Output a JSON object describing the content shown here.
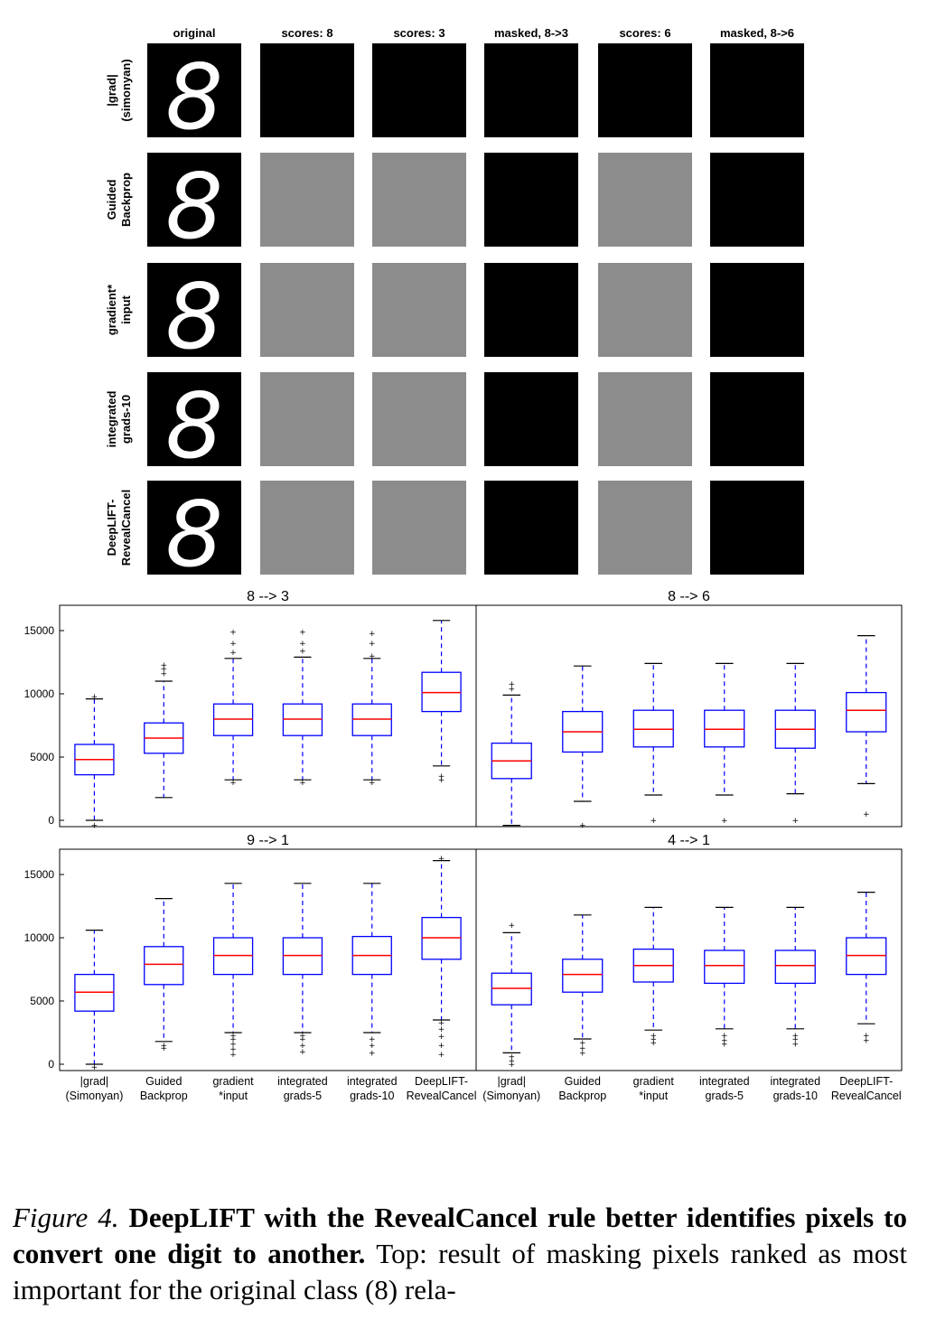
{
  "figure_grid": {
    "columns": [
      "original",
      "scores: 8",
      "scores: 3",
      "masked, 8->3",
      "scores: 6",
      "masked, 8->6"
    ],
    "rows": [
      {
        "label_lines": [
          "|grad|",
          "(simonyan)"
        ],
        "label": "|grad| (simonyan)"
      },
      {
        "label_lines": [
          "Guided",
          "Backprop"
        ],
        "label": "Guided Backprop"
      },
      {
        "label_lines": [
          "gradient*",
          "input"
        ],
        "label": "gradient* input"
      },
      {
        "label_lines": [
          "integrated",
          "grads-10"
        ],
        "label": "integrated grads-10"
      },
      {
        "label_lines": [
          "DeepLIFT-",
          "RevealCancel"
        ],
        "label": "DeepLIFT- RevealCancel"
      }
    ],
    "digit_glyph": "8",
    "colors": {
      "panel_dark": "#000000",
      "panel_gray": "#8c8c8c",
      "stroke": "#ffffff"
    }
  },
  "chart_data": [
    {
      "type": "box",
      "title": "8 --> 3",
      "ylim": [
        -500,
        17000
      ],
      "yticks": [
        0,
        5000,
        10000,
        15000
      ],
      "categories": [
        "|grad| (Simonyan)",
        "Guided Backprop",
        "gradient *input",
        "integrated grads-5",
        "integrated grads-10",
        "DeepLIFT- RevealCancel"
      ],
      "boxes": [
        {
          "whislo": 0,
          "q1": 3600,
          "med": 4800,
          "q3": 6000,
          "whishi": 9600,
          "fliers": [
            -400,
            9800
          ]
        },
        {
          "whislo": 1800,
          "q1": 5300,
          "med": 6500,
          "q3": 7700,
          "whishi": 11000,
          "fliers": [
            11600,
            12000,
            12300
          ]
        },
        {
          "whislo": 3200,
          "q1": 6700,
          "med": 8000,
          "q3": 9200,
          "whishi": 12800,
          "fliers": [
            3000,
            13300,
            14000,
            14900
          ]
        },
        {
          "whislo": 3200,
          "q1": 6700,
          "med": 8000,
          "q3": 9200,
          "whishi": 12900,
          "fliers": [
            3000,
            13400,
            14000,
            14900
          ]
        },
        {
          "whislo": 3200,
          "q1": 6700,
          "med": 8000,
          "q3": 9200,
          "whishi": 12800,
          "fliers": [
            3000,
            13000,
            14000,
            14800
          ]
        },
        {
          "whislo": 4300,
          "q1": 8600,
          "med": 10100,
          "q3": 11700,
          "whishi": 15800,
          "fliers": [
            3200,
            3500
          ]
        }
      ],
      "colors": {
        "box": "#0000ff",
        "median": "#ff0000",
        "whisker": "#0000ff",
        "cap": "#000000"
      }
    },
    {
      "type": "box",
      "title": "8 --> 6",
      "ylim": [
        -500,
        17000
      ],
      "yticks": [
        0,
        5000,
        10000,
        15000
      ],
      "categories": [
        "|grad| (Simonyan)",
        "Guided Backprop",
        "gradient *input",
        "integrated grads-5",
        "integrated grads-10",
        "DeepLIFT- RevealCancel"
      ],
      "boxes": [
        {
          "whislo": -400,
          "q1": 3300,
          "med": 4700,
          "q3": 6100,
          "whishi": 9900,
          "fliers": [
            10400,
            10800
          ]
        },
        {
          "whislo": 1500,
          "q1": 5400,
          "med": 7000,
          "q3": 8600,
          "whishi": 12200,
          "fliers": [
            -400
          ]
        },
        {
          "whislo": 2000,
          "q1": 5800,
          "med": 7200,
          "q3": 8700,
          "whishi": 12400,
          "fliers": [
            0
          ]
        },
        {
          "whislo": 2000,
          "q1": 5800,
          "med": 7200,
          "q3": 8700,
          "whishi": 12400,
          "fliers": [
            0
          ]
        },
        {
          "whislo": 2100,
          "q1": 5700,
          "med": 7200,
          "q3": 8700,
          "whishi": 12400,
          "fliers": [
            0
          ]
        },
        {
          "whislo": 2900,
          "q1": 7000,
          "med": 8700,
          "q3": 10100,
          "whishi": 14600,
          "fliers": [
            500
          ]
        }
      ],
      "colors": {
        "box": "#0000ff",
        "median": "#ff0000",
        "whisker": "#0000ff",
        "cap": "#000000"
      }
    },
    {
      "type": "box",
      "title": "9 --> 1",
      "ylim": [
        -500,
        17000
      ],
      "yticks": [
        0,
        5000,
        10000,
        15000
      ],
      "categories": [
        "|grad| (Simonyan)",
        "Guided Backprop",
        "gradient *input",
        "integrated grads-5",
        "integrated grads-10",
        "DeepLIFT- RevealCancel"
      ],
      "boxes": [
        {
          "whislo": 0,
          "q1": 4200,
          "med": 5700,
          "q3": 7100,
          "whishi": 10600,
          "fliers": [
            -200
          ]
        },
        {
          "whislo": 1800,
          "q1": 6300,
          "med": 7900,
          "q3": 9300,
          "whishi": 13100,
          "fliers": [
            1300,
            1500
          ]
        },
        {
          "whislo": 2500,
          "q1": 7100,
          "med": 8600,
          "q3": 10000,
          "whishi": 14300,
          "fliers": [
            800,
            1200,
            1600,
            2000,
            2300
          ]
        },
        {
          "whislo": 2500,
          "q1": 7100,
          "med": 8600,
          "q3": 10000,
          "whishi": 14300,
          "fliers": [
            1000,
            1500,
            2000,
            2300
          ]
        },
        {
          "whislo": 2500,
          "q1": 7100,
          "med": 8600,
          "q3": 10100,
          "whishi": 14300,
          "fliers": [
            900,
            1500,
            2000
          ]
        },
        {
          "whislo": 3500,
          "q1": 8300,
          "med": 10000,
          "q3": 11600,
          "whishi": 16100,
          "fliers": [
            800,
            1500,
            2200,
            2800,
            3300,
            16300
          ]
        }
      ],
      "colors": {
        "box": "#0000ff",
        "median": "#ff0000",
        "whisker": "#0000ff",
        "cap": "#000000"
      }
    },
    {
      "type": "box",
      "title": "4 --> 1",
      "ylim": [
        -500,
        17000
      ],
      "yticks": [
        0,
        5000,
        10000,
        15000
      ],
      "categories": [
        "|grad| (Simonyan)",
        "Guided Backprop",
        "gradient *input",
        "integrated grads-5",
        "integrated grads-10",
        "DeepLIFT- RevealCancel"
      ],
      "boxes": [
        {
          "whislo": 900,
          "q1": 4700,
          "med": 6000,
          "q3": 7200,
          "whishi": 10400,
          "fliers": [
            0,
            300,
            600,
            11000
          ]
        },
        {
          "whislo": 2000,
          "q1": 5700,
          "med": 7100,
          "q3": 8300,
          "whishi": 11800,
          "fliers": [
            900,
            1300,
            1700
          ]
        },
        {
          "whislo": 2700,
          "q1": 6500,
          "med": 7800,
          "q3": 9100,
          "whishi": 12400,
          "fliers": [
            1700,
            2000,
            2300
          ]
        },
        {
          "whislo": 2800,
          "q1": 6400,
          "med": 7800,
          "q3": 9000,
          "whishi": 12400,
          "fliers": [
            1600,
            1900,
            2300
          ]
        },
        {
          "whislo": 2800,
          "q1": 6400,
          "med": 7800,
          "q3": 9000,
          "whishi": 12400,
          "fliers": [
            1600,
            2000,
            2300
          ]
        },
        {
          "whislo": 3200,
          "q1": 7100,
          "med": 8600,
          "q3": 10000,
          "whishi": 13600,
          "fliers": [
            1900,
            2300
          ]
        }
      ],
      "colors": {
        "box": "#0000ff",
        "median": "#ff0000",
        "whisker": "#0000ff",
        "cap": "#000000"
      }
    }
  ],
  "x_tick_labels": [
    [
      "|grad|",
      "(Simonyan)"
    ],
    [
      "Guided",
      "Backprop"
    ],
    [
      "gradient",
      "*input"
    ],
    [
      "integrated",
      "grads-5"
    ],
    [
      "integrated",
      "grads-10"
    ],
    [
      "DeepLIFT-",
      "RevealCancel"
    ]
  ],
  "caption": {
    "figure_label": "Figure 4.",
    "bold_text": "DeepLIFT with the RevealCancel rule better identifies pixels to convert one digit to another.",
    "body_text": "Top: result of masking pixels ranked as most important for the original class (8) rela-"
  }
}
